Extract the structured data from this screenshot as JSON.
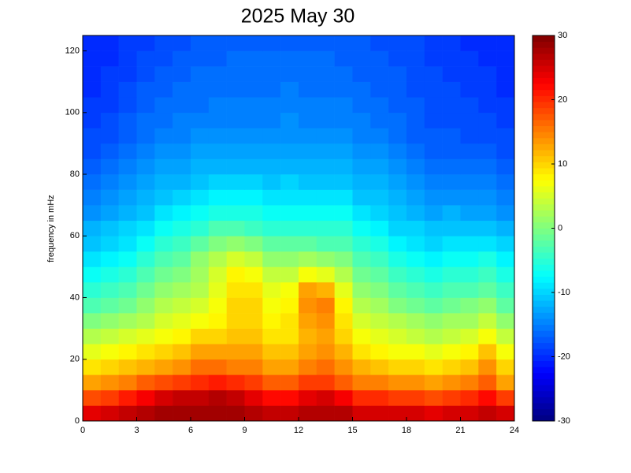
{
  "chart_data": {
    "type": "heatmap",
    "title": "2025 May 30",
    "ylabel": "frequency in mHz",
    "xlim": [
      0,
      24
    ],
    "xticks": [
      0,
      3,
      6,
      9,
      12,
      15,
      18,
      21,
      24
    ],
    "ylim": [
      0,
      125
    ],
    "yticks": [
      0,
      20,
      40,
      60,
      80,
      100,
      120
    ],
    "clim": [
      -30,
      30
    ],
    "cticks": [
      -30,
      -20,
      -10,
      0,
      10,
      20,
      30
    ],
    "colormap": "jet",
    "xbins": [
      0,
      1,
      2,
      3,
      4,
      5,
      6,
      7,
      8,
      9,
      10,
      11,
      12,
      13,
      14,
      15,
      16,
      17,
      18,
      19,
      20,
      21,
      22,
      23,
      24
    ],
    "ybins": [
      0,
      5,
      10,
      15,
      20,
      25,
      30,
      35,
      40,
      45,
      50,
      55,
      60,
      65,
      70,
      75,
      80,
      85,
      90,
      95,
      100,
      105,
      110,
      115,
      120,
      125
    ],
    "z": [
      [
        24,
        25,
        26,
        27,
        28,
        28,
        28,
        28,
        28,
        27,
        26,
        26,
        27,
        27,
        27,
        25,
        25,
        25,
        25,
        24,
        25,
        25,
        26,
        25
      ],
      [
        18,
        19,
        21,
        23,
        25,
        26,
        26,
        27,
        26,
        24,
        22,
        22,
        24,
        25,
        23,
        20,
        20,
        19,
        19,
        18,
        19,
        20,
        22,
        19
      ],
      [
        13,
        14,
        15,
        17,
        18,
        19,
        20,
        21,
        20,
        19,
        17,
        17,
        19,
        19,
        17,
        15,
        15,
        14,
        14,
        13,
        14,
        15,
        17,
        13
      ],
      [
        9,
        10,
        11,
        12,
        13,
        14,
        16,
        16,
        15,
        15,
        13,
        13,
        15,
        16,
        14,
        12,
        11,
        10,
        10,
        9,
        10,
        11,
        14,
        10
      ],
      [
        6,
        7,
        8,
        9,
        10,
        11,
        13,
        13,
        13,
        13,
        11,
        11,
        13,
        14,
        12,
        9,
        8,
        7,
        7,
        6,
        7,
        8,
        11,
        7
      ],
      [
        3,
        4,
        5,
        6,
        7,
        8,
        10,
        10,
        11,
        11,
        9,
        9,
        12,
        13,
        10,
        7,
        6,
        5,
        4,
        3,
        4,
        5,
        7,
        4
      ],
      [
        0,
        1,
        2,
        3,
        5,
        6,
        7,
        8,
        10,
        10,
        8,
        9,
        13,
        14,
        9,
        5,
        4,
        3,
        2,
        1,
        2,
        2,
        4,
        1
      ],
      [
        -3,
        -2,
        -1,
        1,
        3,
        4,
        5,
        7,
        10,
        10,
        7,
        8,
        14,
        15,
        8,
        3,
        2,
        0,
        -1,
        -2,
        -1,
        0,
        1,
        -2
      ],
      [
        -5,
        -4,
        -3,
        -1,
        1,
        2,
        3,
        6,
        9,
        9,
        6,
        7,
        13,
        12,
        6,
        1,
        0,
        -2,
        -3,
        -4,
        -3,
        -3,
        -2,
        -4
      ],
      [
        -7,
        -6,
        -5,
        -3,
        -1,
        0,
        2,
        5,
        8,
        7,
        4,
        4,
        7,
        6,
        3,
        -1,
        -2,
        -4,
        -5,
        -6,
        -5,
        -5,
        -4,
        -6
      ],
      [
        -9,
        -8,
        -7,
        -5,
        -3,
        -2,
        1,
        3,
        5,
        4,
        1,
        1,
        2,
        1,
        0,
        -3,
        -4,
        -6,
        -7,
        -8,
        -7,
        -7,
        -6,
        -8
      ],
      [
        -11,
        -10,
        -9,
        -7,
        -5,
        -4,
        -2,
        0,
        1,
        0,
        -2,
        -2,
        -2,
        -3,
        -3,
        -5,
        -6,
        -8,
        -9,
        -10,
        -9,
        -9,
        -9,
        -10
      ],
      [
        -12,
        -11,
        -10,
        -9,
        -7,
        -6,
        -5,
        -3,
        -3,
        -4,
        -5,
        -5,
        -5,
        -5,
        -5,
        -7,
        -8,
        -10,
        -10,
        -11,
        -11,
        -11,
        -11,
        -12
      ],
      [
        -14,
        -13,
        -12,
        -11,
        -9,
        -8,
        -7,
        -6,
        -6,
        -6,
        -7,
        -7,
        -7,
        -7,
        -7,
        -9,
        -10,
        -11,
        -12,
        -13,
        -12,
        -13,
        -13,
        -14
      ],
      [
        -15,
        -14,
        -13,
        -12,
        -11,
        -10,
        -9,
        -8,
        -8,
        -8,
        -9,
        -9,
        -9,
        -9,
        -9,
        -11,
        -11,
        -12,
        -13,
        -14,
        -14,
        -14,
        -14,
        -15
      ],
      [
        -16,
        -15,
        -14,
        -13,
        -12,
        -12,
        -11,
        -10,
        -10,
        -10,
        -11,
        -10,
        -11,
        -11,
        -11,
        -12,
        -12,
        -13,
        -14,
        -15,
        -15,
        -15,
        -15,
        -16
      ],
      [
        -17,
        -16,
        -15,
        -14,
        -13,
        -13,
        -12,
        -12,
        -12,
        -12,
        -12,
        -12,
        -12,
        -12,
        -12,
        -13,
        -13,
        -14,
        -15,
        -16,
        -16,
        -16,
        -16,
        -17
      ],
      [
        -18,
        -17,
        -16,
        -15,
        -14,
        -14,
        -13,
        -13,
        -13,
        -13,
        -13,
        -13,
        -13,
        -13,
        -13,
        -14,
        -14,
        -15,
        -16,
        -17,
        -17,
        -17,
        -17,
        -18
      ],
      [
        -18,
        -18,
        -17,
        -16,
        -15,
        -15,
        -14,
        -14,
        -14,
        -14,
        -14,
        -14,
        -14,
        -14,
        -14,
        -15,
        -15,
        -16,
        -17,
        -17,
        -17,
        -18,
        -18,
        -18
      ],
      [
        -19,
        -18,
        -17,
        -16,
        -16,
        -15,
        -15,
        -15,
        -15,
        -15,
        -15,
        -14,
        -15,
        -15,
        -15,
        -15,
        -16,
        -16,
        -17,
        -18,
        -18,
        -18,
        -18,
        -19
      ],
      [
        -19,
        -19,
        -18,
        -17,
        -16,
        -16,
        -16,
        -15,
        -15,
        -15,
        -15,
        -15,
        -15,
        -15,
        -15,
        -16,
        -16,
        -17,
        -17,
        -18,
        -18,
        -18,
        -19,
        -19
      ],
      [
        -20,
        -19,
        -18,
        -17,
        -17,
        -16,
        -16,
        -16,
        -16,
        -16,
        -16,
        -15,
        -16,
        -16,
        -16,
        -16,
        -17,
        -17,
        -18,
        -18,
        -18,
        -19,
        -19,
        -20
      ],
      [
        -20,
        -19,
        -19,
        -18,
        -17,
        -17,
        -16,
        -16,
        -16,
        -16,
        -16,
        -16,
        -16,
        -16,
        -16,
        -17,
        -17,
        -17,
        -18,
        -18,
        -19,
        -19,
        -19,
        -20
      ],
      [
        -20,
        -20,
        -19,
        -18,
        -18,
        -17,
        -17,
        -17,
        -16,
        -16,
        -16,
        -16,
        -16,
        -16,
        -17,
        -17,
        -17,
        -18,
        -18,
        -19,
        -19,
        -19,
        -20,
        -20
      ],
      [
        -20,
        -20,
        -19,
        -19,
        -18,
        -18,
        -17,
        -17,
        -17,
        -17,
        -17,
        -17,
        -17,
        -17,
        -17,
        -17,
        -18,
        -18,
        -18,
        -19,
        -19,
        -20,
        -20,
        -20
      ]
    ]
  }
}
